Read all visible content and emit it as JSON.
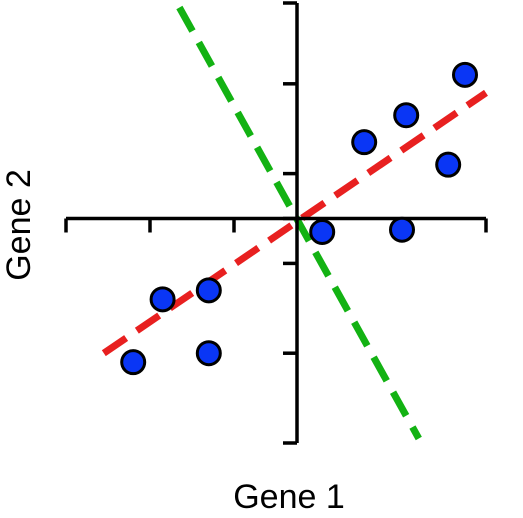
{
  "chart_data": {
    "type": "scatter",
    "title": "",
    "xlabel": "Gene 1",
    "ylabel": "Gene 2",
    "xlim": [
      -5.5,
      4.5
    ],
    "ylim": [
      -5,
      4.8
    ],
    "x_ticks": [
      -5.5,
      -3.5,
      -1.5,
      0.5,
      2.5,
      4.5
    ],
    "y_ticks": [
      -5,
      -3,
      -1,
      0,
      1,
      3,
      4.8
    ],
    "grid": false,
    "legend": "none",
    "points": [
      {
        "x": -3.9,
        "y": -3.2
      },
      {
        "x": -3.2,
        "y": -1.8
      },
      {
        "x": -2.1,
        "y": -1.6
      },
      {
        "x": -2.1,
        "y": -3.0
      },
      {
        "x": 0.6,
        "y": -0.3
      },
      {
        "x": 1.6,
        "y": 1.7
      },
      {
        "x": 2.5,
        "y": -0.25
      },
      {
        "x": 2.6,
        "y": 2.3
      },
      {
        "x": 3.6,
        "y": 1.2
      },
      {
        "x": 4.0,
        "y": 3.2
      }
    ],
    "lines": [
      {
        "x": [
          -4.6,
          4.5
        ],
        "y": [
          -3.0,
          2.8
        ],
        "color": "#e82020",
        "style": "dashed"
      },
      {
        "x": [
          -2.8,
          2.9
        ],
        "y": [
          4.7,
          -4.9
        ],
        "color": "#13b213",
        "style": "dashed"
      }
    ],
    "point_fill": "#0a36f5",
    "point_stroke": "#000000"
  }
}
